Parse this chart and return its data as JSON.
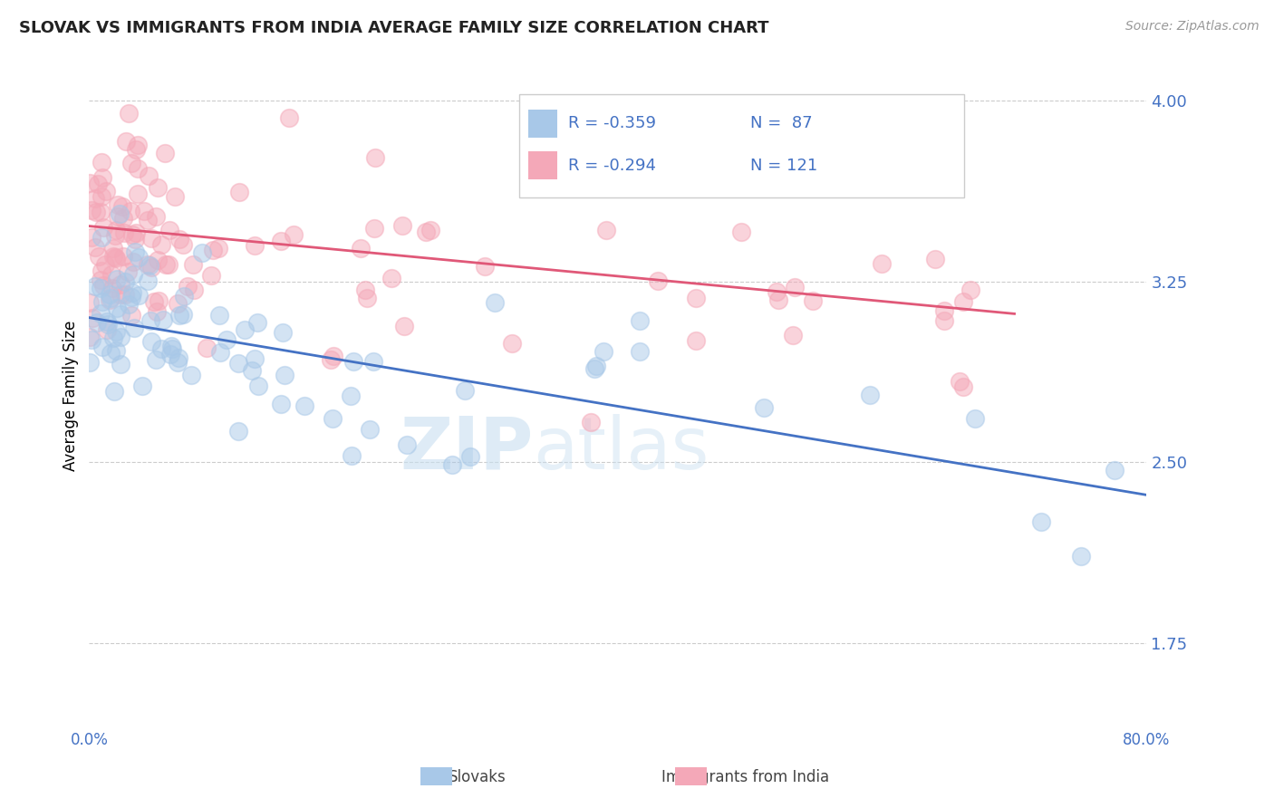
{
  "title": "SLOVAK VS IMMIGRANTS FROM INDIA AVERAGE FAMILY SIZE CORRELATION CHART",
  "source": "Source: ZipAtlas.com",
  "ylabel": "Average Family Size",
  "xlabel": "",
  "legend_r_blue": "R = -0.359",
  "legend_n_blue": "N =  87",
  "legend_r_pink": "R = -0.294",
  "legend_n_pink": "N = 121",
  "xlim": [
    0.0,
    0.8
  ],
  "ylim": [
    1.4,
    4.15
  ],
  "yticks": [
    1.75,
    2.5,
    3.25,
    4.0
  ],
  "xticks": [
    0.0,
    0.1,
    0.2,
    0.3,
    0.4,
    0.5,
    0.6,
    0.7,
    0.8
  ],
  "xtick_labels": [
    "0.0%",
    "",
    "",
    "",
    "",
    "",
    "",
    "",
    "80.0%"
  ],
  "blue_color": "#a8c8e8",
  "pink_color": "#f4a8b8",
  "blue_line_color": "#4472c4",
  "pink_line_color": "#e05878",
  "axis_color": "#4472c4",
  "blue_slope": -0.92,
  "blue_intercept": 3.1,
  "pink_slope": -0.52,
  "pink_intercept": 3.48,
  "N_blue": 87,
  "N_pink": 121
}
